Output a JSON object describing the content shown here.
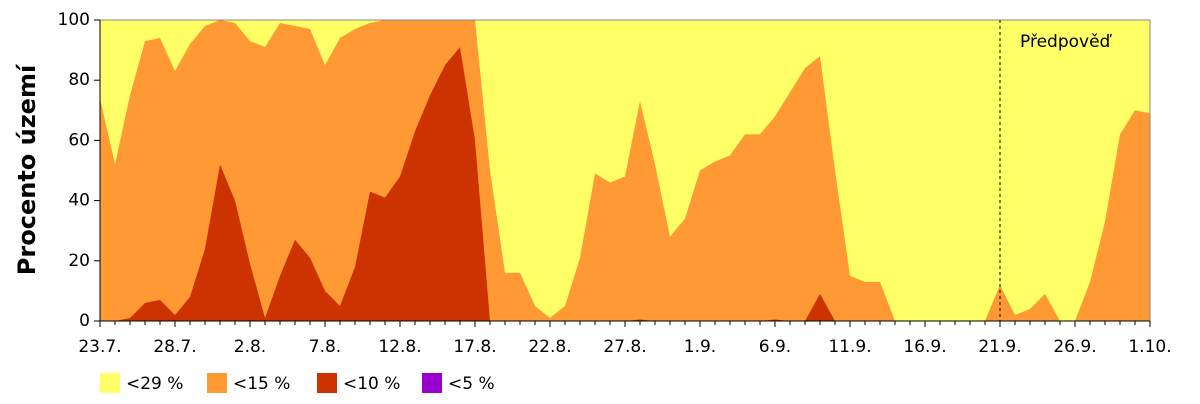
{
  "chart_data": {
    "type": "area",
    "ylabel": "Procento území",
    "categories": [
      "23.7.",
      null,
      null,
      null,
      null,
      "28.7.",
      null,
      null,
      null,
      null,
      "2.8.",
      null,
      null,
      null,
      null,
      "7.8.",
      null,
      null,
      null,
      null,
      "12.8.",
      null,
      null,
      null,
      null,
      "17.8.",
      null,
      null,
      null,
      null,
      "22.8.",
      null,
      null,
      null,
      null,
      "27.8.",
      null,
      null,
      null,
      null,
      "1.9.",
      null,
      null,
      null,
      null,
      "6.9.",
      null,
      null,
      null,
      null,
      "11.9.",
      null,
      null,
      null,
      null,
      "16.9.",
      null,
      null,
      null,
      null,
      "21.9.",
      null,
      null,
      null,
      null,
      "26.9.",
      null,
      null,
      null,
      null,
      "1.10."
    ],
    "series": [
      {
        "name": "<29 %",
        "color": "#ffff66",
        "values": [
          100,
          100,
          100,
          100,
          100,
          100,
          100,
          100,
          100,
          100,
          100,
          100,
          100,
          100,
          100,
          100,
          100,
          100,
          100,
          100,
          100,
          100,
          100,
          100,
          100,
          100,
          100,
          100,
          100,
          100,
          100,
          100,
          100,
          100,
          100,
          100,
          100,
          100,
          100,
          100,
          100,
          100,
          100,
          100,
          100,
          100,
          100,
          100,
          100,
          100,
          100,
          100,
          100,
          100,
          100,
          100,
          100,
          100,
          100,
          100,
          100,
          100,
          100,
          100,
          100,
          100,
          100,
          100,
          100,
          100,
          100
        ]
      },
      {
        "name": "<15 %",
        "color": "#ff9933",
        "values": [
          74,
          52,
          75,
          93,
          94,
          83,
          92,
          98,
          100,
          99,
          93,
          91,
          99,
          98,
          97,
          85,
          94,
          97,
          99,
          100,
          100,
          100,
          100,
          100,
          100,
          100,
          50,
          16,
          16,
          5,
          1,
          5,
          21,
          49,
          46,
          48,
          73,
          52,
          28,
          34,
          50,
          53,
          55,
          62,
          62,
          68,
          76,
          84,
          88,
          50,
          15,
          13,
          13,
          0,
          0,
          0,
          0,
          0,
          0,
          0,
          12,
          2,
          4,
          9,
          0,
          0,
          13,
          33,
          62,
          70,
          69
        ]
      },
      {
        "name": "<10 %",
        "color": "#cc3300",
        "values": [
          0,
          0,
          1,
          6,
          7,
          2,
          8,
          24,
          52,
          40,
          19,
          1,
          15,
          27,
          21,
          10,
          5,
          18,
          43,
          41,
          48,
          63,
          75,
          85,
          91,
          60,
          0,
          0,
          0,
          0,
          0,
          0,
          0,
          0,
          0,
          0,
          0.5,
          0,
          0,
          0,
          0,
          0,
          0,
          0,
          0,
          0.5,
          0,
          0,
          9,
          0,
          0,
          0,
          0,
          0,
          0,
          0,
          0,
          0,
          0,
          0,
          0,
          0,
          0,
          0,
          0,
          0,
          0,
          0,
          0,
          0,
          0
        ]
      },
      {
        "name": "<5 %",
        "color": "#9900cc",
        "values": [
          0,
          0,
          0,
          0,
          0,
          0,
          0,
          0,
          0,
          0,
          0,
          0,
          0,
          0,
          0,
          0,
          0,
          0,
          0,
          0,
          0,
          0,
          0,
          0,
          0,
          0,
          0,
          0,
          0,
          0,
          0,
          0,
          0,
          0,
          0,
          0,
          0,
          0,
          0,
          0,
          0,
          0,
          0,
          0,
          0,
          0,
          0,
          0,
          0,
          0,
          0,
          0,
          0,
          0,
          0,
          0,
          0,
          0,
          0,
          0,
          0,
          0,
          0,
          0,
          0,
          0,
          0,
          0,
          0,
          0,
          0
        ]
      }
    ],
    "ylim": [
      0,
      100
    ],
    "yticks": [
      0,
      20,
      40,
      60,
      80,
      100
    ],
    "forecast": {
      "label": "Předpověď",
      "at": "21.9."
    }
  }
}
